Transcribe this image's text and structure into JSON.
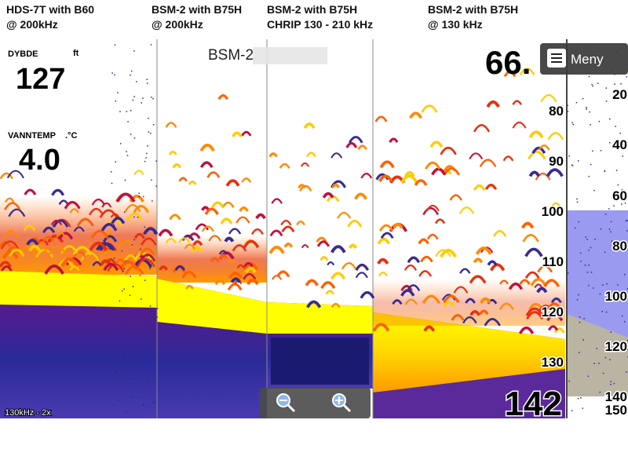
{
  "panels": [
    {
      "caption_lines": [
        "HDS-7T with B60",
        "@ 200kHz"
      ]
    },
    {
      "caption_lines": [
        "BSM-2 with B75H",
        "@ 200kHz"
      ]
    },
    {
      "caption_lines": [
        "BSM-2 with B75H",
        "CHRIP 130 - 210 kHz"
      ]
    },
    {
      "caption_lines": [
        "BSM-2 with B75H",
        "@ 130 kHz"
      ]
    }
  ],
  "readouts": {
    "depth_label": "DYBDE",
    "depth_unit": "ft",
    "depth_value": "127",
    "temp_label": "VANNTEMP",
    "temp_unit": ".°C",
    "temp_value": "4.0"
  },
  "source": "BSM-2",
  "depth_top": "66.",
  "menu": "Meny",
  "scale_labels": [
    "80",
    "90",
    "100",
    "110",
    "120",
    "130"
  ],
  "depth_bottom": "142",
  "right_scale": [
    "20",
    "40",
    "60",
    "80",
    "100",
    "120",
    "140",
    "150"
  ],
  "frequency": "130kHz - 2x"
}
